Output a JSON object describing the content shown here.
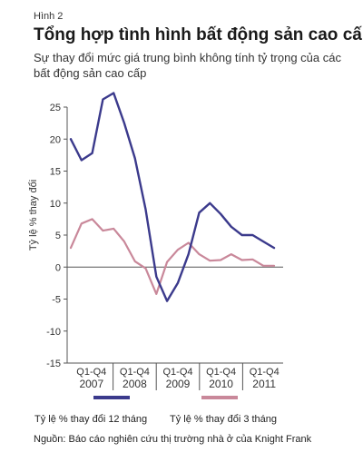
{
  "header": {
    "figure_label": "Hình 2",
    "title": "Tổng hợp tình hình bất động sản cao cấp",
    "subtitle": "Sự thay đổi mức giá trung bình không tính tỷ trọng của các bất động sản cao cấp"
  },
  "source": "Nguồn: Báo cáo nghiên cứu thị trường nhà ở của Knight Frank",
  "chart_data": {
    "type": "line",
    "ylabel": "Tỷ lệ % thay đổi",
    "ylim": [
      -15,
      25
    ],
    "yticks": [
      25,
      20,
      15,
      10,
      5,
      0,
      -5,
      -10,
      -15
    ],
    "x_groups": [
      {
        "top": "Q1-Q4",
        "bottom": "2007"
      },
      {
        "top": "Q1-Q4",
        "bottom": "2008"
      },
      {
        "top": "Q1-Q4",
        "bottom": "2009"
      },
      {
        "top": "Q1-Q4",
        "bottom": "2010"
      },
      {
        "top": "Q1-Q4",
        "bottom": "2011"
      }
    ],
    "x": [
      "Q1 2007",
      "Q2 2007",
      "Q3 2007",
      "Q4 2007",
      "Q1 2008",
      "Q2 2008",
      "Q3 2008",
      "Q4 2008",
      "Q1 2009",
      "Q2 2009",
      "Q3 2009",
      "Q4 2009",
      "Q1 2010",
      "Q2 2010",
      "Q3 2010",
      "Q4 2010",
      "Q1 2011",
      "Q2 2011",
      "Q3 2011",
      "Q4 2011"
    ],
    "series": [
      {
        "name": "Tỷ lệ % thay đổi 12 tháng",
        "color": "#3b3a8c",
        "values": [
          20,
          16.7,
          17.8,
          26.2,
          27.2,
          22.5,
          17,
          9,
          -1.5,
          -5.3,
          -2.5,
          2,
          8.5,
          10,
          8.3,
          6.3,
          5,
          5,
          4,
          3
        ]
      },
      {
        "name": "Tỷ lệ % thay đổi 3 tháng",
        "color": "#c9889a",
        "values": [
          3,
          6.8,
          7.5,
          5.7,
          6,
          4,
          0.9,
          -0.2,
          -4.2,
          0.8,
          2.7,
          3.8,
          2,
          1,
          1.1,
          2,
          1.1,
          1.2,
          0.2,
          0.2
        ]
      }
    ],
    "grid": false,
    "legend": "bottom"
  }
}
